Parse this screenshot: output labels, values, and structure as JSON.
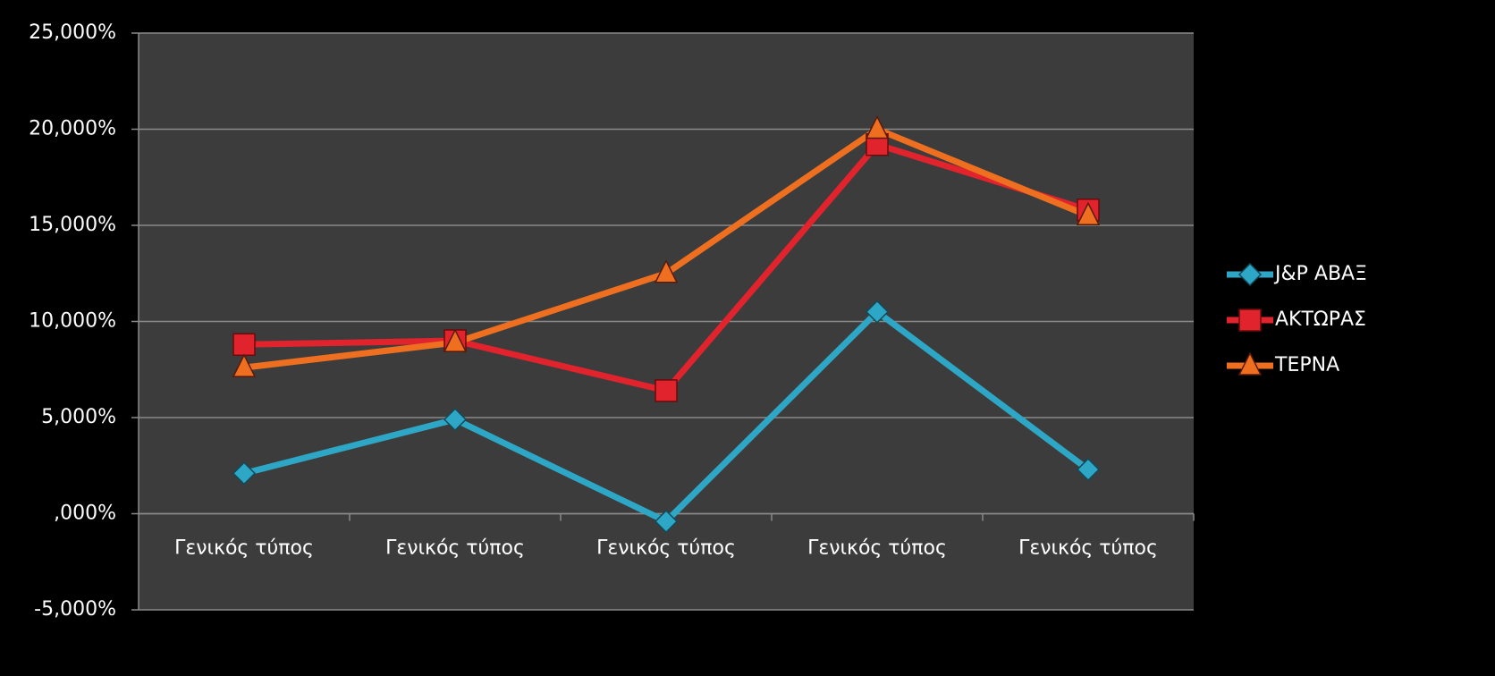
{
  "chart_data": {
    "type": "line",
    "categories": [
      "Γενικός τύπος",
      "Γενικός τύπος",
      "Γενικός τύπος",
      "Γενικός τύπος",
      "Γενικός τύπος"
    ],
    "series": [
      {
        "name": "J&P ΑΒΑΞ",
        "color": "#2ea6c6",
        "marker": "diamond",
        "values": [
          2.1,
          4.9,
          -0.4,
          10.5,
          2.3
        ]
      },
      {
        "name": "ΑΚΤΩΡΑΣ",
        "color": "#e0232d",
        "marker": "square",
        "values": [
          8.8,
          9.0,
          6.4,
          19.2,
          15.8
        ]
      },
      {
        "name": "ΤΕΡΝΑ",
        "color": "#ee6f1f",
        "marker": "triangle",
        "values": [
          7.6,
          8.9,
          12.5,
          20.0,
          15.5
        ]
      }
    ],
    "ylim": [
      -5,
      25
    ],
    "yticks": [
      {
        "value": -5,
        "label": "-5,000%"
      },
      {
        "value": 0,
        "label": ",000%"
      },
      {
        "value": 5,
        "label": "5,000%"
      },
      {
        "value": 10,
        "label": "10,000%"
      },
      {
        "value": 15,
        "label": "15,000%"
      },
      {
        "value": 20,
        "label": "20,000%"
      },
      {
        "value": 25,
        "label": "25,000%"
      }
    ],
    "grid": true,
    "legend": "right"
  }
}
